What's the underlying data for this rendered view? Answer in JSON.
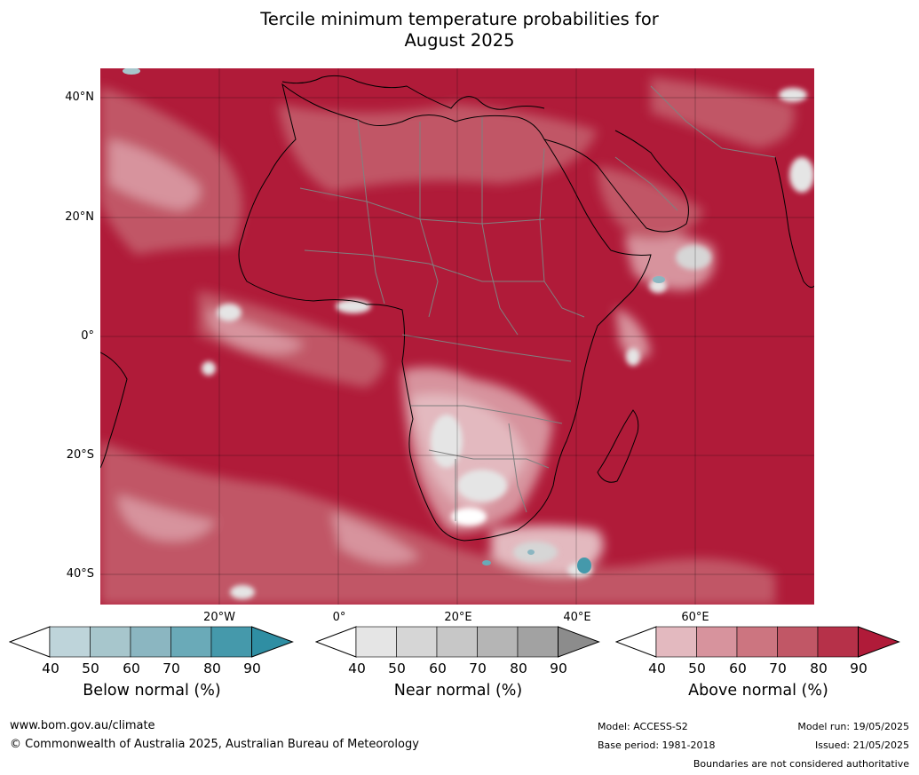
{
  "title_line1": "Tercile minimum temperature probabilities for",
  "title_line2": "August 2025",
  "lat_labels": [
    "40°N",
    "20°N",
    "0°",
    "20°S",
    "40°S"
  ],
  "lon_labels": [
    "20°W",
    "0°",
    "20°E",
    "40°E",
    "60°E"
  ],
  "colorbars": [
    {
      "label": "Below normal (%)",
      "ticks": [
        "40",
        "50",
        "60",
        "70",
        "80",
        "90"
      ],
      "colors": [
        "#ffffff",
        "#bed4da",
        "#a7c6cc",
        "#8bb6c1",
        "#6aaab8",
        "#4599ab",
        "#2f8ea3"
      ]
    },
    {
      "label": "Near normal (%)",
      "ticks": [
        "40",
        "50",
        "60",
        "70",
        "80",
        "90"
      ],
      "colors": [
        "#ffffff",
        "#e5e5e5",
        "#d6d6d6",
        "#c7c7c7",
        "#b5b5b5",
        "#a2a2a2",
        "#8c8c8c"
      ]
    },
    {
      "label": "Above normal (%)",
      "ticks": [
        "40",
        "50",
        "60",
        "70",
        "80",
        "90"
      ],
      "colors": [
        "#ffffff",
        "#e3b9bf",
        "#d7939d",
        "#cc7580",
        "#c15766",
        "#b63149",
        "#b01b39"
      ]
    }
  ],
  "footer": {
    "url": "www.bom.gov.au/climate",
    "copyright": "© Commonwealth of Australia 2025, Australian Bureau of Meteorology",
    "model": "Model: ACCESS-S2",
    "base_period": "Base period: 1981-2018",
    "model_run": "Model run: 19/05/2025",
    "issued": "Issued: 21/05/2025",
    "boundaries": "Boundaries are not considered authoritative"
  }
}
